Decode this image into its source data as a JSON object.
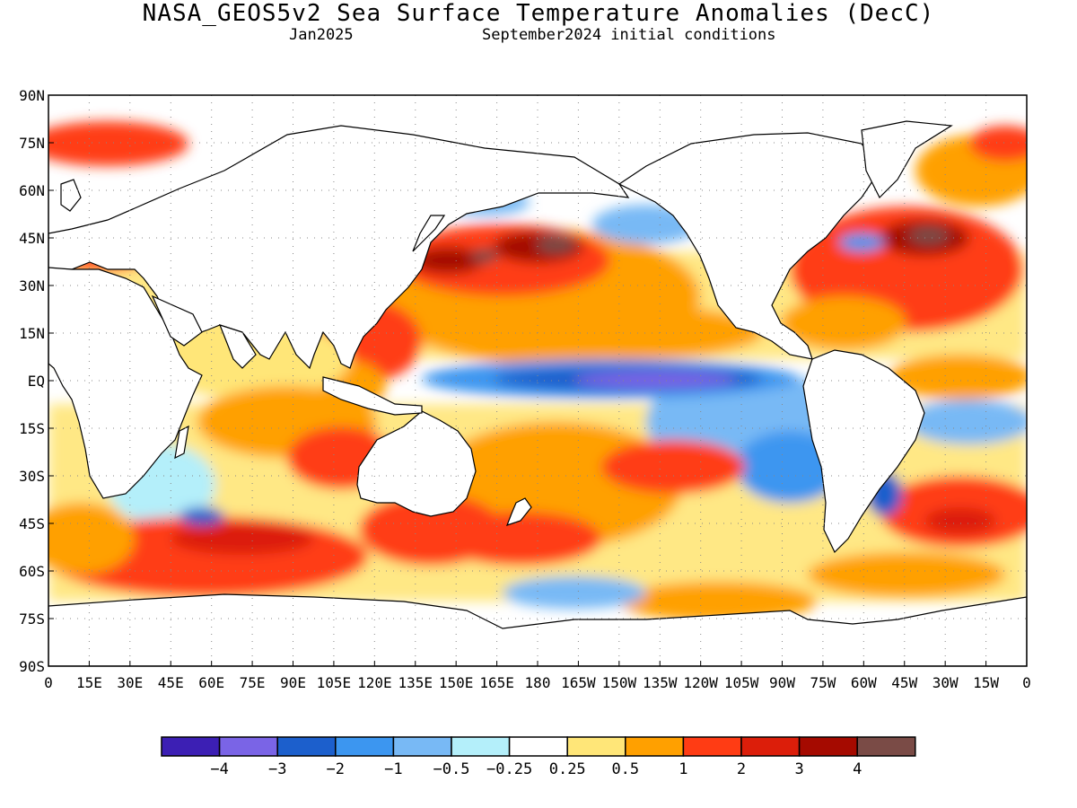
{
  "title": "NASA_GEOS5v2 Sea Surface Temperature Anomalies (DecC)",
  "subtitle_left": "Jan2025",
  "subtitle_right": "September2024 initial conditions",
  "lat_labels": [
    "90N",
    "75N",
    "60N",
    "45N",
    "30N",
    "15N",
    "EQ",
    "15S",
    "30S",
    "45S",
    "60S",
    "75S",
    "90S"
  ],
  "lon_labels": [
    "0",
    "15E",
    "30E",
    "45E",
    "60E",
    "75E",
    "90E",
    "105E",
    "120E",
    "135E",
    "150E",
    "165E",
    "180",
    "165W",
    "150W",
    "135W",
    "120W",
    "105W",
    "90W",
    "75W",
    "60W",
    "45W",
    "30W",
    "15W",
    "0"
  ],
  "colorbar": {
    "colors": [
      "#3c1fb4",
      "#7a64e6",
      "#1c5fcc",
      "#3c96f0",
      "#78b9f5",
      "#b4effa",
      "#ffffff",
      "#ffe678",
      "#ffa000",
      "#ff3c14",
      "#dc1e0a",
      "#a50a00",
      "#7a4b46"
    ],
    "labels": [
      "−4",
      "−3",
      "−2",
      "−1",
      "−0.5",
      "−0.25",
      "0.25",
      "0.5",
      "1",
      "2",
      "3",
      "4"
    ]
  },
  "chart_data": {
    "type": "heatmap",
    "title": "NASA_GEOS5v2 Sea Surface Temperature Anomalies (DecC)",
    "valid": "Jan2025",
    "initial_conditions": "September2024 initial conditions",
    "x_range": [
      "0",
      "0"
    ],
    "y_range": [
      "90S",
      "90N"
    ],
    "levels": [
      -4,
      -3,
      -2,
      -1,
      -0.5,
      -0.25,
      0.25,
      0.5,
      1,
      2,
      3,
      4
    ],
    "features": [
      {
        "region": "Equatorial central Pacific",
        "anomaly": "-3 to -4"
      },
      {
        "region": "Equatorial eastern Pacific",
        "anomaly": "-1 to -2"
      },
      {
        "region": "North Pacific 35N-45N",
        "anomaly": "2 to >4"
      },
      {
        "region": "North Atlantic 40N-50N",
        "anomaly": "2 to >4"
      },
      {
        "region": "Western Pacific warm pool",
        "anomaly": "1 to 2"
      },
      {
        "region": "Southern Ocean 45S-65S Indian sector",
        "anomaly": "1 to 3"
      },
      {
        "region": "Tropical Indian Ocean",
        "anomaly": "0.25 to 1"
      },
      {
        "region": "Tropical Atlantic",
        "anomaly": "0.5 to 2"
      }
    ]
  }
}
